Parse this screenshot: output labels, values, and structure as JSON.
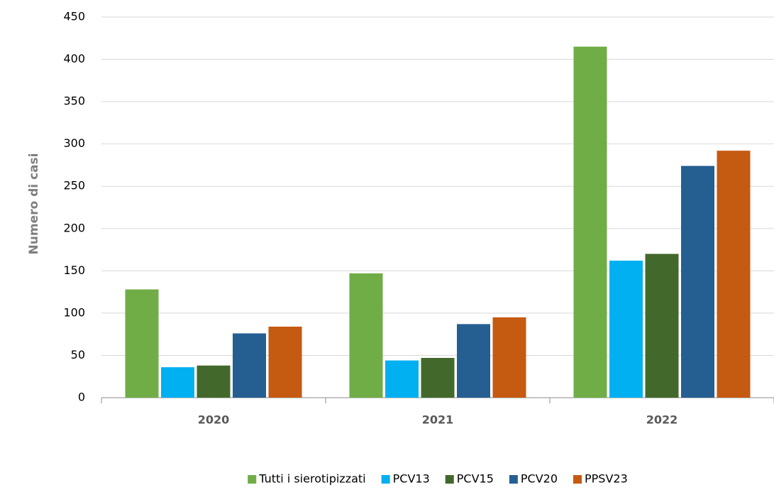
{
  "chart_data": {
    "type": "bar",
    "y_label": "Numero di casi",
    "categories": [
      "2020",
      "2021",
      "2022"
    ],
    "series": [
      {
        "name": "Tutti i sierotipizzati",
        "color": "#70ad47",
        "values": [
          128,
          147,
          415
        ]
      },
      {
        "name": "PCV13",
        "color": "#00b0f0",
        "values": [
          36,
          44,
          162
        ]
      },
      {
        "name": "PCV15",
        "color": "#43682b",
        "values": [
          38,
          47,
          170
        ]
      },
      {
        "name": "PCV20",
        "color": "#255e91",
        "values": [
          76,
          87,
          274
        ]
      },
      {
        "name": "PPSV23",
        "color": "#c55a11",
        "values": [
          84,
          95,
          292
        ]
      }
    ],
    "ylim": [
      0,
      450
    ],
    "yticks": [
      0,
      50,
      100,
      150,
      200,
      250,
      300,
      350,
      400,
      450
    ],
    "grid": true,
    "legend": "bottom"
  }
}
